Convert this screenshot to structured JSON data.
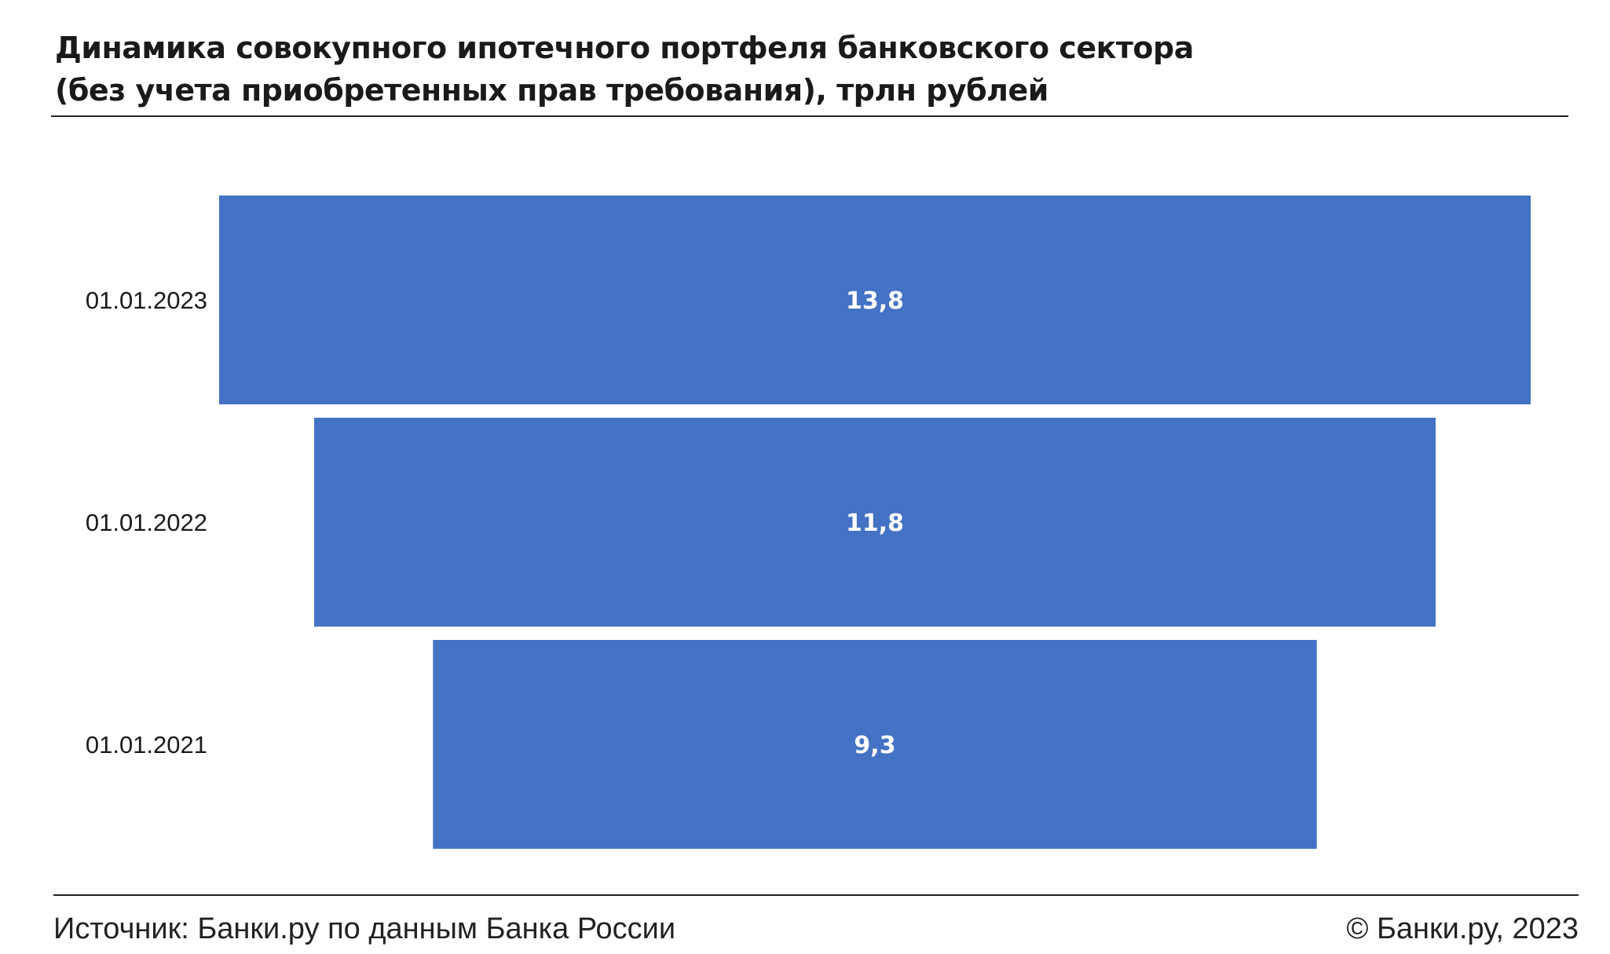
{
  "header": {
    "title_line1": "Динамика совокупного ипотечного портфеля банковского сектора",
    "title_line2": "(без учета приобретенных прав требования), трлн рублей"
  },
  "footer": {
    "source": "Источник: Банки.ру по данным Банка России",
    "copyright": "© Банки.ру, 2023"
  },
  "colors": {
    "bar": "#4472C4",
    "value_label": "#ffffff",
    "category_label": "#1a1a1a"
  },
  "chart_data": {
    "type": "bar",
    "orientation": "horizontal",
    "layout": "centered",
    "categories": [
      "01.01.2023",
      "01.01.2022",
      "01.01.2021"
    ],
    "values": [
      13.8,
      11.8,
      9.3
    ],
    "value_labels": [
      "13,8",
      "11,8",
      "9,3"
    ],
    "title": "Динамика совокупного ипотечного портфеля банковского сектора (без учета приобретенных прав требования), трлн рублей",
    "xlabel": "",
    "ylabel": "",
    "grid": false,
    "legend": "none"
  }
}
